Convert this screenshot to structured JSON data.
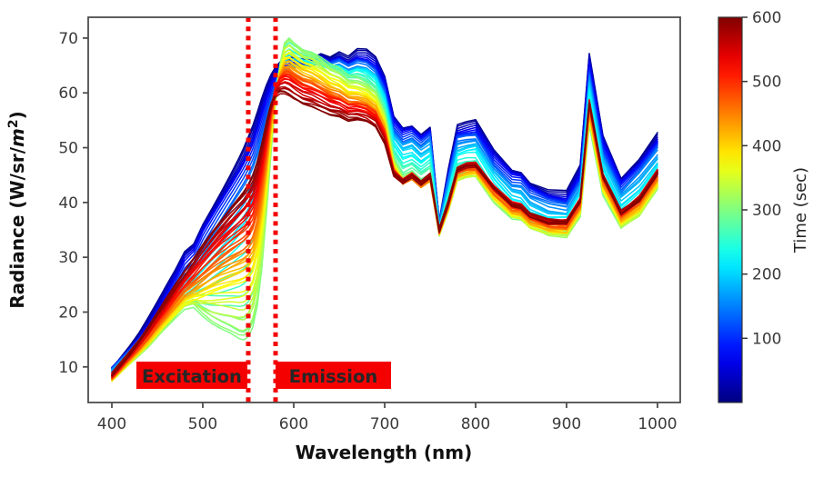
{
  "figure": {
    "title": "",
    "background_color": "#ffffff"
  },
  "chart_data": {
    "type": "line",
    "title": "",
    "xlabel": "Wavelength (nm)",
    "ylabel": "Radiance (W/sr/m²)",
    "ylabel_parts": {
      "prefix": "Radiance (W/sr/",
      "m": "m",
      "sup": "2",
      "close": ")"
    },
    "xlim": [
      374,
      1025
    ],
    "ylim": [
      3.5,
      73.8
    ],
    "x_ticks": [
      400,
      500,
      600,
      700,
      800,
      900,
      1000
    ],
    "y_ticks": [
      10,
      20,
      30,
      40,
      50,
      60,
      70
    ],
    "grid": false,
    "legend": "none (colorbar encodes series)",
    "colorbar": {
      "label": "Time (sec)",
      "vmin": 0,
      "vmax": 600,
      "ticks": [
        100,
        200,
        300,
        400,
        500,
        600
      ],
      "colormap": "jet"
    },
    "annotations": {
      "color": "#f40000",
      "text_color": "#ffffff",
      "vlines": [
        {
          "x_nm": 550,
          "style": "dotted"
        },
        {
          "x_nm": 580,
          "style": "dotted"
        }
      ],
      "labels": [
        {
          "text": "Excitation",
          "x_from_nm": 427,
          "x_to_nm": 549
        },
        {
          "text": "Emission",
          "x_from_nm": 580,
          "x_to_nm": 707
        }
      ]
    },
    "wavelengths_nm": [
      400,
      410,
      420,
      430,
      440,
      450,
      460,
      470,
      480,
      490,
      500,
      510,
      520,
      530,
      540,
      545,
      550,
      555,
      560,
      565,
      570,
      575,
      580,
      585,
      590,
      595,
      600,
      610,
      620,
      630,
      640,
      650,
      660,
      670,
      680,
      690,
      700,
      710,
      720,
      730,
      740,
      750,
      760,
      770,
      780,
      790,
      800,
      820,
      840,
      850,
      860,
      880,
      900,
      915,
      925,
      940,
      960,
      980,
      1000
    ],
    "series": [
      {
        "time_sec": 10,
        "values": [
          10.0,
          12.0,
          14.0,
          16.2,
          18.8,
          21.6,
          24.6,
          27.6,
          31.0,
          32.6,
          36.3,
          39.3,
          42.3,
          45.3,
          48.4,
          50.1,
          52.0,
          54.0,
          56.4,
          59.0,
          61.3,
          63.2,
          64.6,
          65.6,
          66.2,
          66.5,
          66.7,
          66.5,
          66.8,
          67.6,
          66.9,
          67.7,
          66.7,
          67.9,
          67.7,
          66.3,
          62.8,
          55.6,
          53.6,
          54.1,
          52.6,
          53.9,
          36.8,
          46.0,
          53.9,
          54.3,
          54.6,
          49.3,
          45.9,
          45.6,
          43.7,
          42.3,
          41.9,
          46.5,
          66.9,
          52.2,
          44.7,
          48.3,
          52.9
        ]
      },
      {
        "time_sec": 80,
        "values": [
          9.6,
          11.5,
          13.4,
          15.5,
          17.9,
          20.6,
          23.4,
          26.2,
          29.3,
          30.9,
          34.4,
          37.2,
          40.0,
          42.8,
          45.7,
          47.3,
          49.0,
          51.0,
          53.5,
          56.3,
          59.0,
          61.3,
          63.2,
          64.4,
          65.0,
          65.3,
          65.4,
          65.2,
          65.5,
          66.2,
          65.6,
          66.3,
          65.4,
          66.5,
          66.3,
          65.0,
          61.6,
          54.3,
          52.3,
          52.8,
          51.3,
          52.6,
          36.4,
          44.9,
          52.6,
          53.0,
          53.3,
          48.0,
          44.6,
          44.3,
          42.4,
          41.1,
          40.7,
          45.2,
          65.2,
          50.7,
          43.3,
          46.8,
          51.3
        ]
      },
      {
        "time_sec": 150,
        "values": [
          9.2,
          10.9,
          12.6,
          14.5,
          16.6,
          19.0,
          21.5,
          24.0,
          26.7,
          28.2,
          31.0,
          33.4,
          35.8,
          38.2,
          40.7,
          42.0,
          43.5,
          45.4,
          47.9,
          51.0,
          54.5,
          58.0,
          61.2,
          63.2,
          64.3,
          64.8,
          64.9,
          64.6,
          64.8,
          65.3,
          64.7,
          65.2,
          64.4,
          65.2,
          65.0,
          63.8,
          60.2,
          52.8,
          50.8,
          51.4,
          49.9,
          51.2,
          36.0,
          43.6,
          51.0,
          51.5,
          51.8,
          46.5,
          43.0,
          42.7,
          40.8,
          39.5,
          39.2,
          43.6,
          63.3,
          48.8,
          41.7,
          45.0,
          49.4
        ]
      },
      {
        "time_sec": 225,
        "values": [
          8.8,
          10.3,
          11.8,
          13.5,
          15.3,
          17.4,
          19.5,
          21.6,
          23.7,
          25.2,
          27.0,
          28.8,
          30.5,
          32.1,
          33.8,
          34.7,
          35.8,
          37.4,
          39.9,
          43.5,
          48.5,
          54.5,
          60.5,
          64.6,
          66.8,
          67.3,
          67.0,
          66.2,
          65.9,
          65.5,
          64.7,
          64.6,
          63.6,
          64.0,
          63.6,
          62.2,
          58.4,
          50.6,
          48.4,
          49.0,
          47.6,
          48.8,
          35.4,
          41.8,
          48.5,
          49.0,
          49.2,
          44.0,
          40.5,
          40.2,
          38.3,
          37.0,
          36.8,
          40.9,
          59.8,
          45.8,
          38.9,
          41.8,
          46.2
        ]
      },
      {
        "time_sec": 300,
        "values": [
          7.8,
          9.3,
          10.8,
          12.4,
          14.0,
          15.8,
          17.5,
          19.3,
          20.9,
          21.2,
          19.4,
          17.9,
          16.8,
          15.9,
          14.8,
          14.6,
          15.2,
          17.0,
          21.0,
          28.0,
          38.0,
          49.0,
          58.5,
          65.0,
          69.3,
          70.2,
          69.3,
          67.9,
          67.3,
          66.2,
          64.9,
          64.1,
          62.7,
          62.5,
          61.7,
          60.3,
          56.2,
          47.7,
          44.3,
          45.1,
          43.6,
          44.6,
          34.2,
          38.6,
          44.2,
          44.8,
          44.9,
          40.4,
          37.3,
          37.0,
          35.4,
          34.1,
          33.9,
          37.6,
          54.4,
          41.7,
          35.5,
          37.6,
          42.6
        ]
      },
      {
        "time_sec": 375,
        "values": [
          7.9,
          9.5,
          11.0,
          12.7,
          14.4,
          16.3,
          18.2,
          20.1,
          21.9,
          22.6,
          23.2,
          23.9,
          24.5,
          25.0,
          25.4,
          25.7,
          26.3,
          27.7,
          30.8,
          36.2,
          43.8,
          52.3,
          59.5,
          63.8,
          66.3,
          66.6,
          66.0,
          64.9,
          64.3,
          63.3,
          62.2,
          61.6,
          60.4,
          60.3,
          59.7,
          58.4,
          54.6,
          46.6,
          43.8,
          44.7,
          43.2,
          44.3,
          34.4,
          38.9,
          44.7,
          45.3,
          45.4,
          41.0,
          37.9,
          37.6,
          36.0,
          34.8,
          34.6,
          38.4,
          55.6,
          42.7,
          36.3,
          38.5,
          43.4
        ]
      },
      {
        "time_sec": 450,
        "values": [
          8.1,
          9.8,
          11.5,
          13.3,
          15.2,
          17.3,
          19.4,
          21.5,
          23.5,
          24.8,
          26.2,
          27.5,
          28.7,
          29.7,
          30.6,
          31.1,
          31.9,
          33.3,
          36.3,
          41.0,
          47.5,
          54.8,
          60.3,
          63.0,
          64.3,
          64.3,
          63.7,
          62.6,
          62.0,
          61.1,
          60.1,
          59.6,
          58.5,
          58.4,
          57.9,
          56.7,
          53.2,
          45.8,
          43.6,
          44.6,
          43.2,
          44.4,
          34.6,
          39.3,
          45.3,
          45.9,
          46.0,
          41.7,
          38.6,
          38.3,
          36.7,
          35.5,
          35.3,
          39.2,
          56.8,
          43.7,
          37.2,
          39.6,
          44.4
        ]
      },
      {
        "time_sec": 525,
        "values": [
          8.4,
          10.2,
          12.1,
          14.1,
          16.2,
          18.5,
          20.9,
          23.3,
          25.6,
          27.5,
          29.6,
          31.5,
          33.3,
          34.9,
          36.4,
          37.2,
          38.2,
          39.7,
          42.4,
          46.4,
          51.5,
          56.9,
          60.8,
          62.3,
          62.8,
          62.6,
          62.0,
          60.9,
          60.4,
          59.6,
          58.7,
          58.3,
          57.3,
          57.3,
          56.8,
          55.7,
          52.4,
          45.6,
          43.9,
          45.0,
          43.6,
          44.9,
          34.8,
          39.9,
          46.2,
          46.9,
          47.0,
          42.8,
          39.7,
          39.4,
          37.8,
          36.6,
          36.5,
          40.4,
          58.4,
          45.0,
          38.3,
          40.9,
          45.7
        ]
      },
      {
        "time_sec": 600,
        "values": [
          8.8,
          10.7,
          12.7,
          14.9,
          17.2,
          19.7,
          22.3,
          24.9,
          27.4,
          29.8,
          32.4,
          34.8,
          37.0,
          39.1,
          41.0,
          42.0,
          43.2,
          44.8,
          47.3,
          50.6,
          54.4,
          57.6,
          59.4,
          59.9,
          59.8,
          59.4,
          58.8,
          57.9,
          57.5,
          56.8,
          56.1,
          55.8,
          54.9,
          55.0,
          54.6,
          53.6,
          50.6,
          44.9,
          43.7,
          44.9,
          43.6,
          44.9,
          34.9,
          40.0,
          46.0,
          46.6,
          46.6,
          42.6,
          39.6,
          39.3,
          37.7,
          36.5,
          36.4,
          40.2,
          58.0,
          44.7,
          38.1,
          40.6,
          45.4
        ]
      }
    ]
  }
}
